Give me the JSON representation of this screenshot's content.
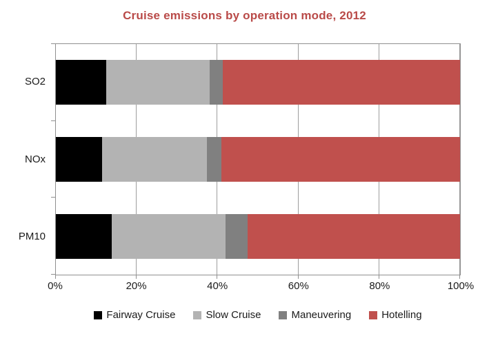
{
  "title": {
    "text": "Cruise emissions by operation mode, 2012",
    "color": "#b94a48"
  },
  "chart_data": {
    "type": "bar",
    "orientation": "horizontal",
    "stacked": true,
    "title": "Cruise emissions by operation mode, 2012",
    "categories": [
      "SO2",
      "NOx",
      "PM10"
    ],
    "series": [
      {
        "name": "Fairway Cruise",
        "color": "#000000",
        "values": [
          12.5,
          11.4,
          13.8
        ]
      },
      {
        "name": "Slow Cruise",
        "color": "#b3b3b3",
        "values": [
          25.5,
          25.9,
          28.2
        ]
      },
      {
        "name": "Maneuvering",
        "color": "#808080",
        "values": [
          3.3,
          3.7,
          5.5
        ]
      },
      {
        "name": "Hotelling",
        "color": "#c0504d",
        "values": [
          58.7,
          59.0,
          52.5
        ]
      }
    ],
    "x_axis": {
      "min": 0,
      "max": 100,
      "tick_labels": [
        "0%",
        "20%",
        "40%",
        "60%",
        "80%",
        "100%"
      ]
    },
    "grid": true,
    "legend_position": "bottom"
  }
}
